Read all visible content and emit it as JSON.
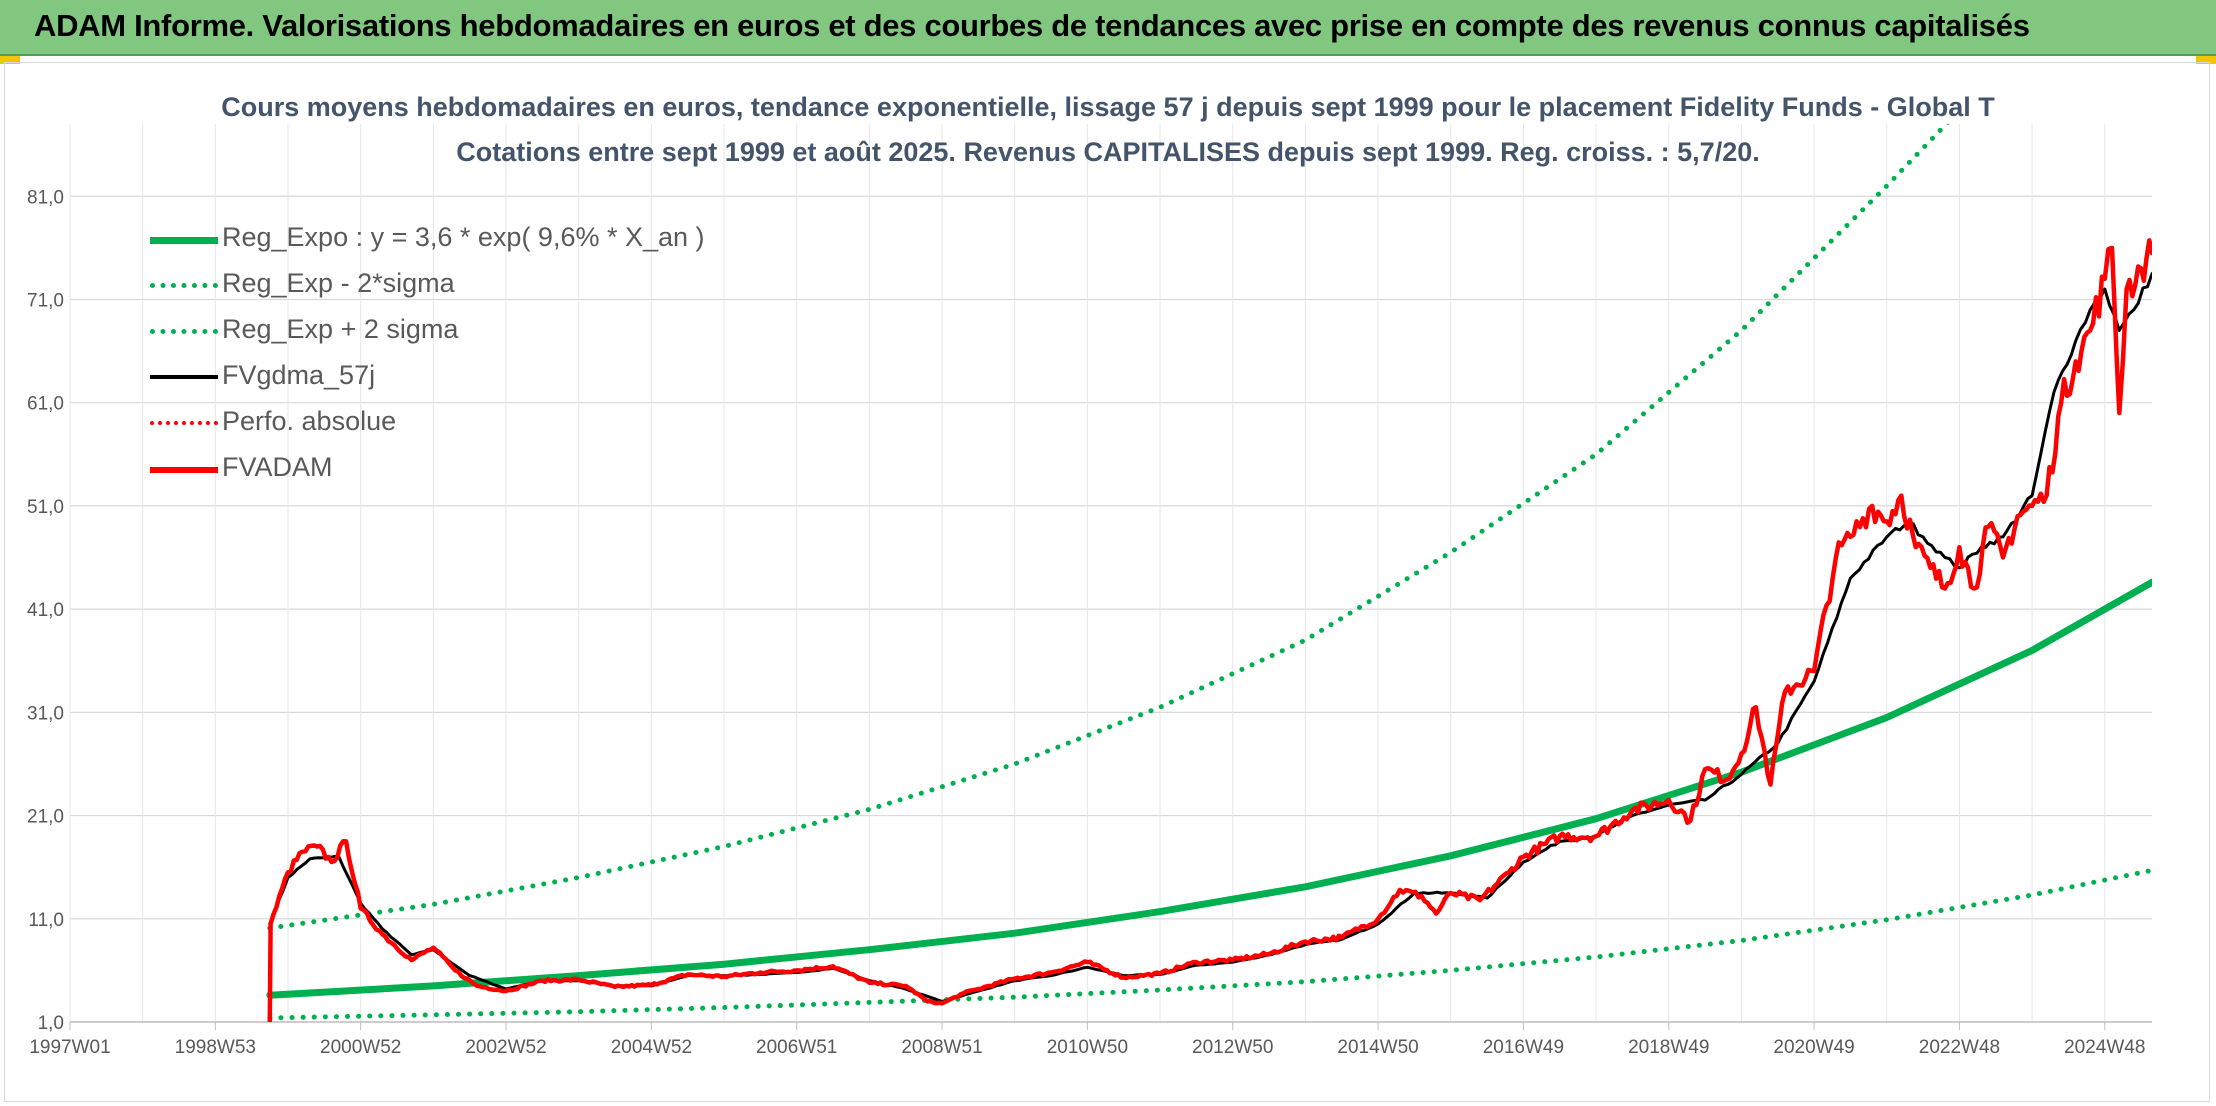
{
  "header": {
    "title": "ADAM Informe. Valorisations hebdomadaires en euros et des courbes de tendances avec prise en compte des revenus connus capitalisés"
  },
  "colors": {
    "header_bg": "#82c77f",
    "regression": "#00b050",
    "series_black": "#000000",
    "series_red": "#ff0000",
    "grid": "#d9d9d9",
    "text": "#595959",
    "title_text": "#44546a"
  },
  "chart_data": {
    "type": "line",
    "title": "Cours moyens hebdomadaires en euros, tendance exponentielle, lissage 57 j depuis sept 1999 pour le placement Fidelity Funds - Global T",
    "subtitle": "Cotations entre sept 1999 et août 2025. Revenus CAPITALISES depuis sept 1999. Reg. croiss. : 5,7/20.",
    "xlabel": "",
    "ylabel": "",
    "x_range": [
      1997.0,
      2025.65
    ],
    "ylim": [
      1.0,
      88.0
    ],
    "y_ticks": [
      "1,0",
      "11,0",
      "21,0",
      "31,0",
      "41,0",
      "51,0",
      "61,0",
      "71,0",
      "81,0"
    ],
    "x_ticks": [
      {
        "label": "1997W01",
        "year": 1997.0
      },
      {
        "label": "1998W53",
        "year": 1999.0
      },
      {
        "label": "2000W52",
        "year": 2001.0
      },
      {
        "label": "2002W52",
        "year": 2003.0
      },
      {
        "label": "2004W52",
        "year": 2005.0
      },
      {
        "label": "2006W51",
        "year": 2007.0
      },
      {
        "label": "2008W51",
        "year": 2009.0
      },
      {
        "label": "2010W50",
        "year": 2011.0
      },
      {
        "label": "2012W50",
        "year": 2013.0
      },
      {
        "label": "2014W50",
        "year": 2015.0
      },
      {
        "label": "2016W49",
        "year": 2017.0
      },
      {
        "label": "2018W49",
        "year": 2019.0
      },
      {
        "label": "2020W49",
        "year": 2021.0
      },
      {
        "label": "2022W48",
        "year": 2023.0
      },
      {
        "label": "2024W48",
        "year": 2025.0
      }
    ],
    "grid": true,
    "legend_position": "top-left",
    "series": [
      {
        "name": "Reg_Expo : y = 3,6 * exp( 9,6% *  X_an )",
        "style": "solid-thick",
        "color": "#00b050",
        "x": [
          1999.75,
          2002.0,
          2004.0,
          2006.0,
          2008.0,
          2010.0,
          2012.0,
          2014.0,
          2016.0,
          2018.0,
          2020.0,
          2022.0,
          2024.0,
          2025.65
        ],
        "y": [
          3.6,
          4.5,
          5.5,
          6.6,
          8.0,
          9.6,
          11.7,
          14.1,
          17.1,
          20.7,
          25.2,
          30.5,
          37.0,
          43.6
        ]
      },
      {
        "name": "Reg_Exp - 2*sigma",
        "style": "dotted",
        "color": "#00b050",
        "x": [
          1999.75,
          2002.0,
          2004.0,
          2006.0,
          2008.0,
          2010.0,
          2012.0,
          2014.0,
          2016.0,
          2018.0,
          2020.0,
          2022.0,
          2024.0,
          2025.65
        ],
        "y": [
          1.4,
          1.7,
          2.0,
          2.4,
          2.9,
          3.4,
          4.1,
          4.9,
          6.0,
          7.3,
          8.9,
          10.9,
          13.3,
          15.7
        ]
      },
      {
        "name": "Reg_Exp + 2 sigma",
        "style": "dotted",
        "color": "#00b050",
        "x": [
          1999.75,
          2002.0,
          2004.0,
          2006.0,
          2008.0,
          2010.0,
          2012.0,
          2014.0,
          2016.0,
          2018.0,
          2020.0,
          2022.0,
          2023.5,
          2023.55,
          2025.65
        ],
        "y": [
          10.1,
          12.4,
          15.0,
          18.0,
          21.6,
          26.0,
          31.5,
          38.0,
          46.5,
          56.0,
          68.0,
          82.0,
          93.0,
          92.0,
          92.0
        ]
      },
      {
        "name": "FVgdma_57j",
        "style": "solid",
        "color": "#000000",
        "x": [
          1999.75,
          2000.0,
          2000.3,
          2000.7,
          2001.0,
          2001.3,
          2001.7,
          2002.0,
          2002.5,
          2003.0,
          2003.5,
          2004.0,
          2004.5,
          2005.0,
          2005.5,
          2006.0,
          2006.5,
          2007.0,
          2007.5,
          2008.0,
          2008.5,
          2009.0,
          2009.5,
          2010.0,
          2010.5,
          2011.0,
          2011.5,
          2012.0,
          2012.5,
          2013.0,
          2013.5,
          2014.0,
          2014.5,
          2015.0,
          2015.5,
          2016.0,
          2016.5,
          2017.0,
          2017.5,
          2018.0,
          2018.5,
          2019.0,
          2019.5,
          2020.0,
          2020.5,
          2021.0,
          2021.5,
          2022.0,
          2022.3,
          2022.5,
          2022.8,
          2023.0,
          2023.3,
          2023.6,
          2024.0,
          2024.3,
          2024.6,
          2024.8,
          2025.0,
          2025.2,
          2025.4,
          2025.65
        ],
        "y": [
          10.5,
          15.0,
          16.8,
          17.0,
          12.5,
          10.0,
          7.5,
          8.0,
          5.5,
          4.2,
          5.0,
          5.0,
          4.5,
          4.5,
          5.5,
          5.5,
          5.6,
          5.8,
          6.2,
          5.0,
          4.2,
          3.0,
          4.0,
          5.0,
          5.5,
          6.3,
          5.5,
          5.6,
          6.5,
          6.8,
          7.5,
          8.5,
          9.0,
          10.5,
          13.5,
          13.5,
          13.0,
          16.5,
          18.5,
          19.0,
          21.0,
          22.0,
          22.5,
          25.0,
          28.0,
          34.0,
          44.0,
          48.0,
          49.5,
          48.0,
          46.0,
          45.0,
          47.0,
          48.0,
          52.0,
          62.0,
          67.0,
          70.0,
          72.0,
          68.0,
          70.0,
          73.5
        ]
      },
      {
        "name": "Perfo. absolue",
        "style": "dotted",
        "color": "#ff0000",
        "x": [],
        "y": []
      },
      {
        "name": "FVADAM",
        "style": "solid-thick",
        "color": "#ff0000",
        "x": [
          1999.75,
          1999.76,
          2000.0,
          2000.2,
          2000.4,
          2000.6,
          2000.8,
          2001.0,
          2001.3,
          2001.7,
          2002.0,
          2002.3,
          2002.6,
          2003.0,
          2003.5,
          2004.0,
          2004.5,
          2005.0,
          2005.5,
          2006.0,
          2006.5,
          2007.0,
          2007.5,
          2008.0,
          2008.5,
          2008.8,
          2009.0,
          2009.3,
          2009.5,
          2010.0,
          2010.5,
          2011.0,
          2011.5,
          2012.0,
          2012.5,
          2013.0,
          2013.5,
          2014.0,
          2014.5,
          2015.0,
          2015.3,
          2015.6,
          2015.8,
          2016.0,
          2016.4,
          2016.8,
          2017.0,
          2017.5,
          2018.0,
          2018.5,
          2019.0,
          2019.3,
          2019.5,
          2019.8,
          2020.0,
          2020.2,
          2020.4,
          2020.6,
          2021.0,
          2021.3,
          2021.5,
          2021.8,
          2022.0,
          2022.2,
          2022.4,
          2022.6,
          2022.8,
          2023.0,
          2023.2,
          2023.4,
          2023.6,
          2023.8,
          2024.0,
          2024.2,
          2024.4,
          2024.6,
          2024.8,
          2025.0,
          2025.1,
          2025.2,
          2025.3,
          2025.5,
          2025.65
        ],
        "y": [
          1.0,
          10.5,
          15.5,
          17.5,
          18.0,
          16.5,
          18.5,
          12.0,
          9.5,
          7.0,
          8.2,
          6.0,
          4.5,
          4.0,
          5.0,
          5.1,
          4.4,
          4.6,
          5.6,
          5.4,
          5.8,
          6.0,
          6.4,
          4.8,
          4.5,
          3.0,
          2.8,
          3.8,
          4.2,
          5.2,
          5.8,
          6.8,
          5.3,
          5.7,
          6.8,
          7.0,
          7.6,
          8.8,
          9.2,
          11.0,
          13.8,
          13.2,
          11.5,
          13.5,
          12.8,
          15.5,
          17.0,
          19.0,
          19.0,
          21.5,
          22.5,
          20.5,
          25.5,
          24.5,
          27.0,
          31.5,
          24.0,
          33.0,
          35.0,
          46.0,
          48.0,
          51.0,
          49.5,
          52.0,
          47.0,
          45.0,
          43.0,
          47.0,
          43.0,
          49.0,
          46.0,
          50.0,
          51.0,
          52.0,
          61.0,
          65.0,
          68.0,
          73.0,
          76.0,
          60.0,
          72.0,
          74.0,
          75.5
        ]
      }
    ]
  }
}
